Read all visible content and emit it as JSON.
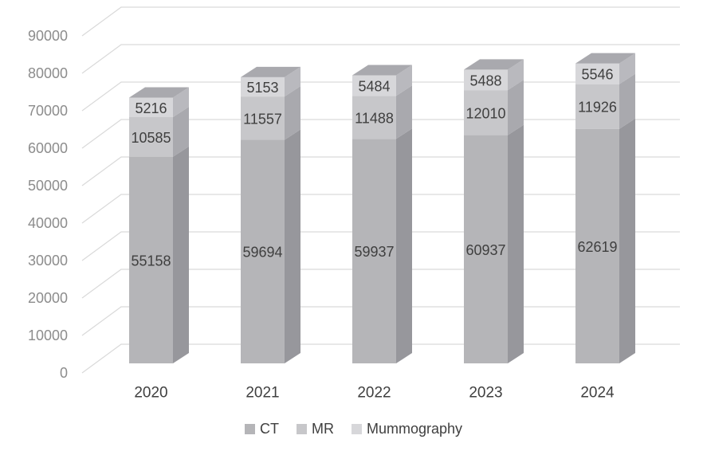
{
  "chart_data": {
    "type": "bar",
    "variant": "3d-stacked-column",
    "title": "",
    "stacked": true,
    "data_labels_visible": true,
    "grid": "horizontal",
    "categories": [
      "2020",
      "2021",
      "2022",
      "2023",
      "2024"
    ],
    "series": [
      {
        "name": "CT",
        "values": [
          55158,
          59694,
          59937,
          60937,
          62619
        ]
      },
      {
        "name": "MR",
        "values": [
          10585,
          11557,
          11488,
          12010,
          11926
        ]
      },
      {
        "name": "Mummography",
        "values": [
          5216,
          5153,
          5484,
          5488,
          5546
        ]
      }
    ],
    "stack_totals": [
      70959,
      76404,
      76909,
      78435,
      80091
    ],
    "y_axis": {
      "min": 0,
      "max": 90000,
      "step": 10000,
      "tick_labels": [
        "0",
        "10000",
        "20000",
        "30000",
        "40000",
        "50000",
        "60000",
        "70000",
        "80000",
        "90000"
      ]
    },
    "x_axis": {
      "tick_labels": [
        "2020",
        "2021",
        "2022",
        "2023",
        "2024"
      ]
    },
    "legend": {
      "position": "bottom",
      "entries": [
        "CT",
        "MR",
        "Mummography"
      ]
    },
    "colors": {
      "series_front": [
        "#b5b5b8",
        "#c7c7ca",
        "#d7d7da"
      ],
      "series_side": [
        "#97979c",
        "#a9a9ae",
        "#b9b9be"
      ],
      "series_top": [
        "#909095",
        "#a2a2a7",
        "#a9a9ae"
      ],
      "gridline": "#d9d9d9",
      "axis_label": "#8c8c8c",
      "data_label": "#3f3f3f",
      "category_label": "#3f3f3f",
      "background": "#ffffff"
    }
  }
}
